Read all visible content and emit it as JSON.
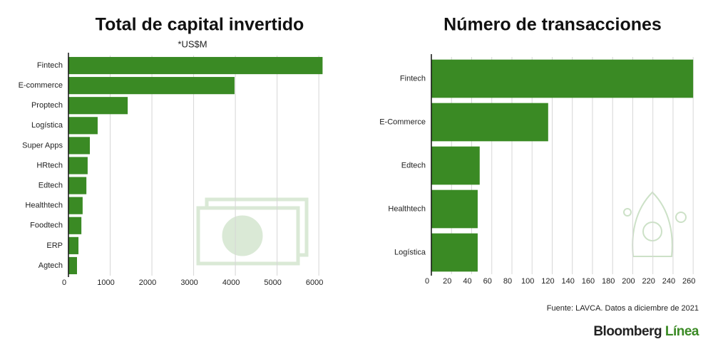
{
  "chart_data": [
    {
      "type": "bar",
      "orientation": "horizontal",
      "title": "Total de capital invertido",
      "subtitle": "*US$M",
      "categories": [
        "Fintech",
        "E-commerce",
        "Proptech",
        "Logística",
        "Super Apps",
        "HRtech",
        "Edtech",
        "Healthtech",
        "Foodtech",
        "ERP",
        "Agtech"
      ],
      "values": [
        6090,
        3980,
        1420,
        700,
        513,
        460,
        430,
        340,
        310,
        240,
        205
      ],
      "color": "#3a8a24",
      "xlim": [
        0,
        6100
      ],
      "xticks": [
        0,
        1000,
        2000,
        3000,
        4000,
        5000,
        6000
      ],
      "grid": true
    },
    {
      "type": "bar",
      "orientation": "horizontal",
      "title": "Número de transacciones",
      "categories": [
        "Fintech",
        "E-Commerce",
        "Edtech",
        "Healthtech",
        "Logística"
      ],
      "values": [
        260,
        116,
        48,
        46,
        46
      ],
      "color": "#3a8a24",
      "xlim": [
        0,
        262
      ],
      "xticks": [
        0,
        20,
        40,
        60,
        80,
        100,
        120,
        140,
        160,
        180,
        200,
        220,
        240,
        260
      ],
      "grid": true
    }
  ],
  "footer": {
    "source": "Fuente: LAVCA. Datos a diciembre de 2021",
    "brand": "Bloomberg",
    "brand_accent": "Línea"
  }
}
